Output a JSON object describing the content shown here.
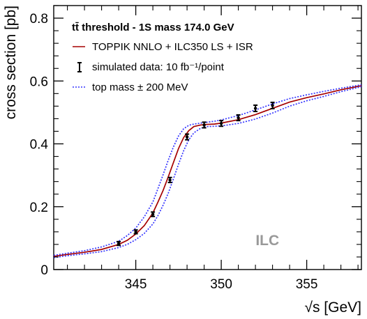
{
  "chart_data": {
    "type": "line",
    "xlabel": "√s [GeV]",
    "ylabel": "cross section [pb]",
    "xlim": [
      340.2,
      358.2
    ],
    "ylim": [
      0,
      0.84
    ],
    "x_ticks": [
      345,
      350,
      355
    ],
    "x_tick_labels": [
      "345",
      "350",
      "355"
    ],
    "y_ticks": [
      0,
      0.2,
      0.4,
      0.6,
      0.8
    ],
    "y_tick_labels": [
      "0",
      "0.2",
      "0.4",
      "0.6",
      "0.8"
    ],
    "grid": false,
    "legend_placement": "top-left",
    "legend_title": "tt̄ threshold - 1S mass 174.0 GeV",
    "series": [
      {
        "name": "TOPPIK NNLO + ILC350 LS + ISR",
        "kind": "line",
        "style": "solid",
        "color": "#a50000",
        "x": [
          340.2,
          341,
          342,
          343,
          344,
          344.5,
          345,
          345.5,
          346,
          346.3,
          346.6,
          346.9,
          347.2,
          347.5,
          347.8,
          348.1,
          348.4,
          348.8,
          349.2,
          349.6,
          350,
          351,
          352,
          353,
          354,
          355,
          356,
          357,
          358.2
        ],
        "y": [
          0.042,
          0.048,
          0.055,
          0.064,
          0.08,
          0.093,
          0.113,
          0.14,
          0.18,
          0.215,
          0.252,
          0.295,
          0.34,
          0.385,
          0.42,
          0.442,
          0.455,
          0.46,
          0.462,
          0.463,
          0.466,
          0.477,
          0.493,
          0.513,
          0.533,
          0.547,
          0.559,
          0.572,
          0.585
        ]
      },
      {
        "name": "top mass ± 200 MeV",
        "kind": "line",
        "style": "dotted",
        "color": "#3333ff",
        "x": [
          340.2,
          341,
          342,
          343,
          344,
          344.5,
          345,
          345.5,
          346,
          346.3,
          346.6,
          346.9,
          347.2,
          347.5,
          347.8,
          348.1,
          348.4,
          348.8,
          349.2,
          349.6,
          350,
          351,
          352,
          353,
          354,
          355,
          356,
          357,
          358.2
        ],
        "y": [
          0.045,
          0.052,
          0.06,
          0.072,
          0.09,
          0.108,
          0.132,
          0.168,
          0.215,
          0.258,
          0.302,
          0.348,
          0.39,
          0.425,
          0.448,
          0.459,
          0.463,
          0.466,
          0.469,
          0.472,
          0.476,
          0.49,
          0.508,
          0.527,
          0.544,
          0.556,
          0.567,
          0.577,
          0.588
        ]
      },
      {
        "name": "",
        "kind": "line",
        "style": "dotted",
        "color": "#3333ff",
        "x": [
          340.2,
          341,
          342,
          343,
          344,
          344.5,
          345,
          345.5,
          346,
          346.3,
          346.6,
          346.9,
          347.2,
          347.5,
          347.8,
          348.1,
          348.4,
          348.8,
          349.2,
          349.6,
          350,
          351,
          352,
          353,
          354,
          355,
          356,
          357,
          358.2
        ],
        "y": [
          0.038,
          0.044,
          0.05,
          0.057,
          0.07,
          0.08,
          0.095,
          0.115,
          0.145,
          0.172,
          0.205,
          0.243,
          0.288,
          0.335,
          0.378,
          0.413,
          0.435,
          0.45,
          0.455,
          0.456,
          0.457,
          0.465,
          0.479,
          0.498,
          0.52,
          0.537,
          0.551,
          0.566,
          0.582
        ]
      },
      {
        "name": "simulated data: 10 fb⁻¹/point",
        "kind": "points",
        "color": "#000000",
        "x": [
          344,
          345,
          346,
          347,
          348,
          349,
          350,
          351,
          352,
          353
        ],
        "y": [
          0.083,
          0.12,
          0.176,
          0.285,
          0.422,
          0.46,
          0.465,
          0.483,
          0.513,
          0.522
        ],
        "yerr": [
          0.006,
          0.006,
          0.007,
          0.008,
          0.009,
          0.009,
          0.009,
          0.009,
          0.01,
          0.01
        ]
      }
    ],
    "annotations": [
      {
        "text": "ILC",
        "x": 352.7,
        "y": 0.078,
        "color": "#999999"
      }
    ]
  }
}
